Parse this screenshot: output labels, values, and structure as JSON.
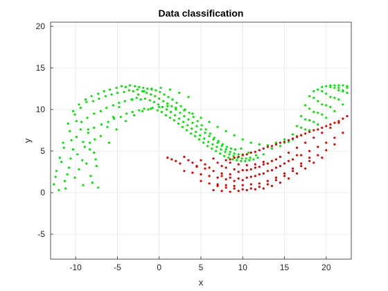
{
  "chart_data": {
    "type": "scatter",
    "title": "Data classification",
    "xlabel": "x",
    "ylabel": "y",
    "xlim": [
      -13,
      23
    ],
    "ylim": [
      -8,
      20.5
    ],
    "xticks": [
      -10,
      -5,
      0,
      5,
      10,
      15,
      20
    ],
    "yticks": [
      -5,
      0,
      5,
      10,
      15,
      20
    ],
    "xtick_labels": [
      "-10",
      "-5",
      "0",
      "5",
      "10",
      "15",
      "20"
    ],
    "ytick_labels": [
      "-5",
      "0",
      "5",
      "10",
      "15",
      "20"
    ],
    "grid": true,
    "colors": {
      "class_a": "#00e600",
      "class_b": "#e60000",
      "grid": "#e6e6e6",
      "axis": "#262626"
    },
    "series": [
      {
        "color": "#00e600",
        "description_shape": "upper moon",
        "x": [
          -12.6,
          -12.3,
          -11.9,
          -11.4,
          -11.2,
          -10.8,
          -10.5,
          -10.1,
          -9.8,
          -9.4,
          -9.1,
          -8.7,
          -8.3,
          -8.0,
          -7.6,
          -7.3,
          -12.4,
          -11.7,
          -11.0,
          -10.3,
          -9.6,
          -8.9,
          -8.2,
          -7.5,
          -12.0,
          -11.3,
          -10.6,
          -9.9,
          -9.2,
          -8.5,
          -7.8,
          -11.5,
          -10.7,
          -9.9,
          -9.1,
          -8.3,
          -10.9,
          -10.1,
          -9.3,
          -8.5,
          -7.7,
          -10.3,
          -9.4,
          -8.6,
          -7.8,
          -9.6,
          -8.7,
          -7.8,
          -6.9,
          -8.8,
          -7.9,
          -7.0,
          -6.1,
          -8.1,
          -7.2,
          -6.3,
          -5.4,
          -7.3,
          -6.4,
          -5.5,
          -4.6,
          -6.6,
          -5.7,
          -4.8,
          -3.9,
          -5.9,
          -5.0,
          -4.1,
          -3.2,
          -5.1,
          -4.2,
          -3.3,
          -2.4,
          -4.5,
          -3.6,
          -2.7,
          -1.8,
          -4.0,
          -3.1,
          -2.2,
          -1.3,
          -3.5,
          -2.6,
          -1.7,
          -0.8,
          -2.9,
          -2.0,
          -1.1,
          -0.2,
          -2.4,
          -1.5,
          -0.6,
          0.3,
          -1.9,
          -1.0,
          -0.1,
          0.8,
          -1.4,
          -0.5,
          0.4,
          1.3,
          -0.9,
          0.0,
          0.9,
          1.8,
          -0.4,
          0.5,
          1.4,
          2.3,
          0.1,
          1.0,
          1.9,
          2.8,
          0.6,
          1.5,
          2.4,
          3.3,
          1.1,
          2.0,
          2.9,
          3.8,
          1.6,
          2.5,
          3.4,
          4.3,
          2.1,
          3.0,
          3.9,
          4.8,
          2.6,
          3.5,
          4.4,
          5.3,
          3.1,
          4.0,
          4.9,
          5.8,
          3.6,
          4.5,
          5.4,
          6.3,
          4.1,
          5.0,
          5.9,
          6.8,
          4.6,
          5.5,
          6.4,
          7.3,
          5.1,
          6.0,
          6.9,
          7.8,
          5.6,
          6.5,
          7.4,
          8.3,
          6.1,
          7.0,
          7.9,
          8.8,
          6.6,
          7.5,
          8.4,
          9.3,
          7.1,
          8.0,
          8.9,
          9.8,
          7.6,
          8.5,
          9.4,
          10.3,
          8.1,
          9.0,
          9.9,
          10.8,
          8.6,
          9.5,
          10.4,
          11.3,
          9.1,
          10.0,
          10.9,
          11.8,
          9.8,
          10.7,
          11.6,
          12.5,
          -7.0,
          -6.2,
          -5.5,
          -4.8,
          -3.2,
          -2.5,
          -1.8,
          -0.9,
          0.2,
          1.3,
          2.4,
          3.5,
          -6.0,
          -5.1,
          -4.0,
          -3.0,
          -2.0,
          -1.0,
          0.0,
          1.0,
          2.0,
          3.0,
          4.0,
          5.0,
          6.0,
          7.0,
          8.0,
          9.0,
          10.0,
          11.0,
          12.0,
          13.0,
          14.0,
          15.0,
          16.0,
          17.0,
          18.0,
          19.0,
          20.0,
          21.0,
          22.0,
          13.5,
          14.5,
          15.5,
          16.5,
          17.5,
          18.5,
          19.5,
          20.5,
          21.5,
          22.5,
          14.0,
          15.0,
          16.0,
          17.0,
          18.0,
          19.0,
          20.0,
          21.0,
          22.0,
          16.5,
          17.5,
          18.5,
          19.5,
          20.5,
          21.5,
          22.5,
          17.0,
          18.0,
          19.0,
          20.0,
          21.0,
          22.0,
          17.5,
          18.5,
          19.5,
          20.5,
          21.5,
          22.5,
          18.0,
          19.0,
          20.0,
          21.0,
          22.0,
          18.5,
          19.5,
          20.5,
          21.5,
          22.5
        ],
        "y": [
          1.0,
          2.6,
          4.2,
          5.4,
          0.5,
          3.0,
          6.3,
          1.8,
          4.6,
          7.6,
          0.9,
          3.5,
          6.0,
          1.2,
          4.0,
          0.6,
          1.9,
          3.7,
          2.2,
          5.2,
          2.8,
          5.5,
          2.0,
          3.2,
          0.3,
          1.4,
          4.1,
          6.7,
          3.9,
          7.2,
          4.8,
          6.0,
          7.4,
          8.6,
          6.1,
          5.2,
          8.3,
          9.4,
          8.5,
          7.6,
          6.4,
          9.8,
          10.2,
          9.0,
          7.8,
          10.6,
          10.9,
          9.5,
          8.2,
          11.2,
          11.0,
          9.8,
          8.5,
          11.6,
          11.3,
          10.2,
          8.9,
          11.9,
          11.6,
          10.5,
          9.1,
          12.2,
          11.8,
          10.8,
          9.5,
          12.4,
          12.0,
          11.0,
          9.7,
          12.6,
          12.1,
          11.2,
          9.9,
          12.8,
          12.3,
          11.4,
          10.1,
          12.7,
          12.2,
          11.2,
          10.0,
          12.9,
          12.4,
          11.3,
          10.2,
          12.8,
          12.2,
          11.1,
          9.9,
          12.7,
          12.0,
          10.9,
          9.7,
          12.6,
          11.8,
          10.6,
          9.3,
          12.5,
          11.6,
          10.3,
          9.0,
          12.4,
          11.3,
          10.0,
          8.7,
          12.3,
          11.0,
          9.7,
          8.3,
          12.1,
          10.7,
          9.3,
          7.9,
          11.8,
          10.4,
          8.9,
          7.5,
          11.5,
          10.0,
          8.5,
          7.1,
          11.2,
          9.6,
          8.1,
          6.8,
          10.8,
          9.2,
          7.7,
          6.4,
          10.4,
          8.8,
          7.3,
          6.0,
          10.0,
          8.4,
          6.9,
          5.6,
          9.6,
          8.0,
          6.5,
          5.3,
          9.1,
          7.6,
          6.1,
          5.0,
          8.6,
          7.2,
          5.8,
          4.7,
          8.1,
          6.8,
          5.5,
          4.4,
          7.6,
          6.4,
          5.2,
          4.2,
          7.1,
          6.0,
          4.9,
          4.0,
          6.6,
          5.6,
          4.6,
          3.9,
          6.2,
          5.2,
          4.4,
          3.8,
          5.8,
          4.9,
          4.2,
          3.8,
          5.5,
          4.7,
          4.1,
          3.9,
          5.3,
          4.6,
          4.1,
          4.0,
          5.2,
          4.6,
          4.2,
          4.2,
          5.3,
          4.8,
          4.5,
          4.6,
          6.8,
          7.9,
          9.1,
          10.3,
          11.2,
          11.8,
          12.2,
          12.5,
          12.6,
          12.4,
          12.0,
          11.5,
          6.0,
          7.6,
          8.6,
          9.3,
          9.8,
          10.1,
          10.3,
          10.4,
          10.2,
          9.9,
          9.5,
          9.0,
          8.5,
          7.9,
          7.4,
          6.9,
          6.4,
          6.0,
          5.8,
          5.7,
          5.8,
          6.0,
          6.4,
          6.9,
          7.5,
          8.2,
          9.0,
          9.8,
          10.6,
          5.3,
          5.6,
          6.1,
          6.8,
          7.6,
          8.5,
          9.4,
          10.3,
          11.2,
          12.0,
          6.0,
          6.4,
          7.0,
          7.8,
          8.7,
          9.6,
          10.5,
          11.4,
          12.2,
          8.0,
          8.8,
          9.7,
          10.6,
          11.5,
          12.3,
          12.8,
          9.2,
          10.1,
          11.0,
          11.9,
          12.6,
          12.9,
          10.5,
          11.4,
          12.2,
          12.7,
          12.9,
          12.6,
          11.6,
          12.4,
          12.8,
          12.9,
          12.3,
          12.2,
          12.7,
          12.9,
          12.6,
          12.0
        ]
      },
      {
        "color": "#e60000",
        "description_shape": "lower moon",
        "x": [
          1.0,
          1.5,
          2.0,
          2.5,
          3.0,
          3.5,
          4.0,
          4.5,
          5.0,
          5.5,
          6.0,
          6.5,
          7.0,
          7.5,
          8.0,
          8.5,
          9.0,
          9.5,
          10.0,
          10.5,
          11.0,
          11.5,
          12.0,
          12.5,
          13.0,
          13.5,
          14.0,
          14.5,
          15.0,
          15.5,
          16.0,
          16.5,
          17.0,
          17.5,
          18.0,
          18.5,
          19.0,
          19.5,
          20.0,
          20.5,
          21.0,
          21.5,
          22.0,
          22.5,
          3.0,
          4.0,
          5.0,
          6.0,
          7.0,
          8.0,
          9.0,
          10.0,
          11.0,
          12.0,
          13.0,
          14.0,
          15.0,
          16.0,
          17.0,
          18.0,
          19.0,
          20.0,
          21.0,
          22.0,
          5.0,
          6.0,
          7.0,
          8.0,
          9.0,
          10.0,
          11.0,
          12.0,
          13.0,
          14.0,
          15.0,
          16.0,
          17.0,
          18.0,
          19.0,
          20.0,
          21.0,
          6.5,
          7.5,
          8.5,
          9.5,
          10.5,
          11.5,
          12.5,
          13.5,
          14.5,
          15.5,
          16.5,
          17.5,
          18.5,
          19.5,
          7.0,
          8.0,
          9.0,
          10.0,
          11.0,
          12.0,
          13.0,
          14.0,
          15.0,
          16.0,
          17.0,
          18.0,
          7.5,
          8.5,
          9.5,
          10.5,
          11.5,
          12.5,
          13.5,
          14.5,
          15.5,
          16.5,
          8.0,
          9.0,
          10.0,
          11.0,
          12.0,
          13.0,
          14.0,
          8.5,
          9.5,
          10.5,
          11.5,
          12.5,
          4.5,
          5.5,
          6.5,
          7.5,
          8.5,
          9.5,
          10.5,
          11.5,
          12.5,
          13.5,
          14.5,
          15.5,
          16.5,
          17.5,
          18.5,
          19.5,
          20.5,
          21.5
        ],
        "y": [
          4.2,
          4.0,
          3.8,
          3.5,
          4.3,
          3.9,
          3.6,
          3.2,
          3.9,
          3.4,
          3.0,
          4.1,
          3.6,
          3.2,
          3.9,
          4.0,
          4.2,
          4.3,
          4.5,
          4.6,
          4.8,
          4.9,
          5.1,
          5.3,
          5.5,
          5.6,
          5.8,
          6.0,
          6.1,
          6.3,
          6.5,
          6.7,
          6.9,
          7.1,
          7.3,
          7.5,
          7.6,
          7.8,
          8.0,
          8.2,
          8.4,
          8.6,
          8.9,
          9.2,
          2.6,
          2.4,
          2.2,
          2.0,
          1.8,
          1.6,
          1.4,
          1.5,
          1.9,
          2.2,
          2.6,
          3.0,
          3.5,
          4.0,
          4.5,
          5.0,
          5.5,
          6.0,
          6.6,
          7.2,
          1.4,
          1.1,
          0.8,
          0.6,
          0.5,
          0.4,
          0.5,
          0.7,
          1.0,
          1.5,
          2.0,
          2.6,
          3.2,
          3.8,
          4.5,
          5.1,
          5.8,
          0.3,
          0.2,
          0.1,
          0.2,
          0.3,
          0.4,
          0.5,
          0.8,
          1.2,
          1.7,
          2.3,
          2.9,
          3.6,
          4.2,
          1.0,
          0.9,
          0.8,
          0.9,
          1.0,
          1.1,
          1.4,
          1.8,
          2.3,
          2.9,
          3.5,
          4.2,
          2.0,
          1.8,
          1.7,
          1.8,
          2.0,
          2.3,
          2.7,
          3.2,
          3.8,
          4.5,
          3.0,
          2.8,
          2.7,
          2.8,
          3.1,
          3.5,
          4.0,
          3.6,
          3.4,
          3.3,
          3.4,
          3.7,
          3.1,
          2.9,
          2.6,
          2.3,
          2.2,
          2.5,
          2.7,
          3.0,
          3.4,
          3.8,
          4.3,
          4.8,
          5.4,
          6.0,
          6.6,
          7.2,
          7.8,
          8.4
        ]
      }
    ]
  }
}
